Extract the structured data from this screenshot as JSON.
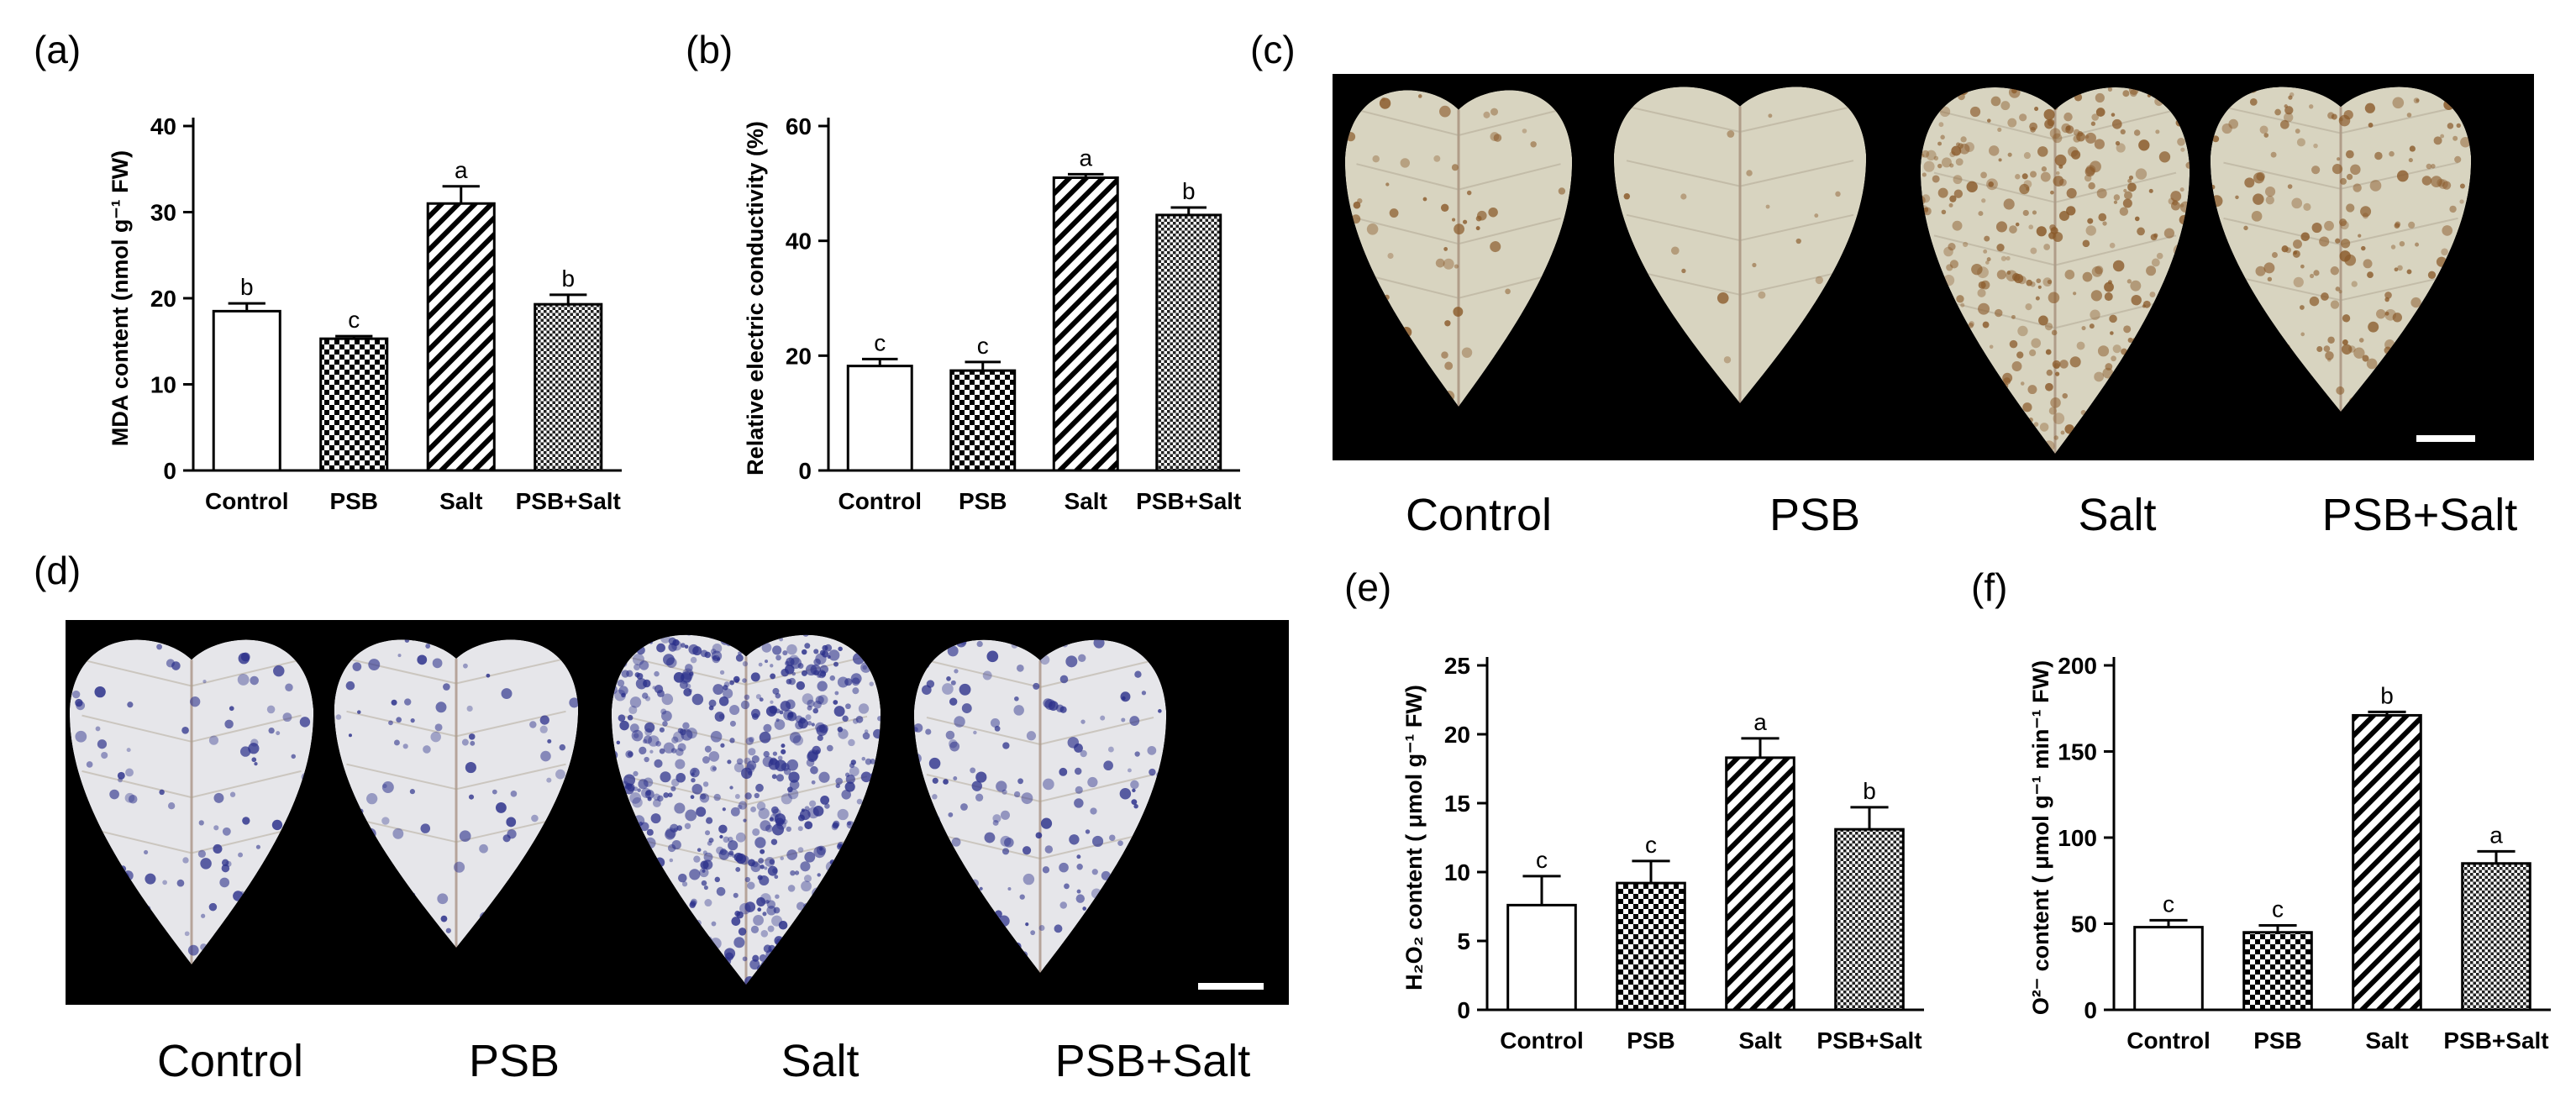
{
  "panels": {
    "a": {
      "label": "(a)"
    },
    "b": {
      "label": "(b)"
    },
    "c": {
      "label": "(c)"
    },
    "d": {
      "label": "(d)"
    },
    "e": {
      "label": "(e)"
    },
    "f": {
      "label": "(f)"
    }
  },
  "photo_c": {
    "labels": [
      "Control",
      "PSB",
      "Salt",
      "PSB+Salt"
    ]
  },
  "photo_d": {
    "labels": [
      "Control",
      "PSB",
      "Salt",
      "PSB+Salt"
    ]
  },
  "chart_data": [
    {
      "id": "a",
      "type": "bar",
      "categories": [
        "Control",
        "PSB",
        "Salt",
        "PSB+Salt"
      ],
      "values": [
        18.5,
        15.3,
        31,
        19.3
      ],
      "errors": [
        0.9,
        0.3,
        2.0,
        1.1
      ],
      "sig": [
        "b",
        "c",
        "a",
        "b"
      ],
      "ylabel": "MDA content (nmol g⁻¹ FW)",
      "ylim": [
        0,
        40
      ],
      "yticks": [
        0,
        10,
        20,
        30,
        40
      ],
      "patterns": [
        "none",
        "checker",
        "diagonal",
        "dots"
      ]
    },
    {
      "id": "b",
      "type": "bar",
      "categories": [
        "Control",
        "PSB",
        "Salt",
        "PSB+Salt"
      ],
      "values": [
        18.2,
        17.4,
        51,
        44.5
      ],
      "errors": [
        1.2,
        1.5,
        0.6,
        1.3
      ],
      "sig": [
        "c",
        "c",
        "a",
        "b"
      ],
      "ylabel": "Relative electric conductivity (%)",
      "ylim": [
        0,
        60
      ],
      "yticks": [
        0,
        20,
        40,
        60
      ],
      "patterns": [
        "none",
        "checker",
        "diagonal",
        "dots"
      ]
    },
    {
      "id": "e",
      "type": "bar",
      "categories": [
        "Control",
        "PSB",
        "Salt",
        "PSB+Salt"
      ],
      "values": [
        7.6,
        9.2,
        18.3,
        13.1
      ],
      "errors": [
        2.1,
        1.6,
        1.4,
        1.6
      ],
      "sig": [
        "c",
        "c",
        "a",
        "b"
      ],
      "ylabel": "H₂O₂ content ( μmol g⁻¹ FW)",
      "ylim": [
        0,
        25
      ],
      "yticks": [
        0,
        5,
        10,
        15,
        20,
        25
      ],
      "patterns": [
        "none",
        "checker",
        "diagonal",
        "dots"
      ]
    },
    {
      "id": "f",
      "type": "bar",
      "categories": [
        "Control",
        "PSB",
        "Salt",
        "PSB+Salt"
      ],
      "values": [
        48,
        45,
        171,
        85
      ],
      "errors": [
        4,
        4,
        2,
        7
      ],
      "sig": [
        "c",
        "c",
        "b",
        "a"
      ],
      "ylabel": "O²⁻ content ( μmol g⁻¹ min⁻¹ FW)",
      "ylim": [
        0,
        200
      ],
      "yticks": [
        0,
        50,
        100,
        150,
        200
      ],
      "patterns": [
        "none",
        "checker",
        "diagonal",
        "dots"
      ]
    }
  ]
}
